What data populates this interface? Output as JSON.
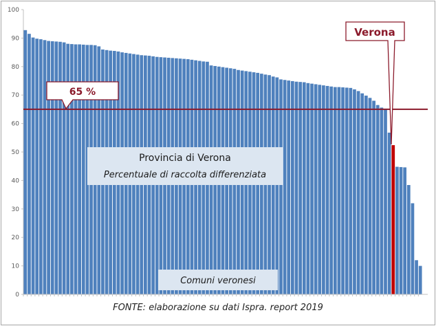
{
  "chart_data": {
    "type": "bar",
    "title": "Provincia di Verona",
    "subtitle": "Percentuale di raccolta differenziata",
    "xlabel": "Comuni veronesi",
    "ylabel": "",
    "ylim": [
      0,
      100
    ],
    "yticks": [
      0,
      10,
      20,
      30,
      40,
      50,
      60,
      70,
      80,
      90,
      100
    ],
    "grid": false,
    "bar_color": "#4f81bd",
    "highlight_color": "#c00000",
    "series": [
      {
        "values": [
          92.8,
          91.5,
          90.2,
          89.8,
          89.6,
          89.3,
          89.0,
          88.9,
          88.8,
          88.7,
          88.5,
          88.0,
          87.9,
          87.8,
          87.8,
          87.7,
          87.6,
          87.6,
          87.5,
          87.1,
          86.0,
          85.8,
          85.6,
          85.5,
          85.3,
          85.0,
          84.8,
          84.6,
          84.4,
          84.2,
          84.0,
          83.9,
          83.8,
          83.6,
          83.4,
          83.3,
          83.2,
          83.1,
          83.0,
          82.9,
          82.8,
          82.7,
          82.6,
          82.4,
          82.2,
          82.0,
          81.8,
          81.7,
          80.4,
          80.2,
          80.0,
          79.8,
          79.6,
          79.4,
          79.2,
          78.8,
          78.6,
          78.4,
          78.2,
          78.0,
          77.8,
          77.5,
          77.2,
          77.0,
          76.5,
          76.2,
          75.5,
          75.3,
          75.1,
          74.9,
          74.7,
          74.6,
          74.5,
          74.2,
          74.0,
          73.8,
          73.6,
          73.4,
          73.2,
          73.0,
          72.8,
          72.8,
          72.7,
          72.6,
          72.5,
          72.0,
          71.4,
          70.6,
          69.8,
          69.0,
          68.0,
          66.5,
          65.6,
          65.2,
          56.8,
          52.4,
          44.8,
          44.7,
          44.6,
          38.4,
          32.0,
          12.0,
          10.0
        ]
      }
    ],
    "highlight": {
      "label": "Verona",
      "index": 95,
      "value": 52.4
    },
    "threshold": {
      "label": "65 %",
      "value": 65
    }
  },
  "source_note": "FONTE: elaborazione su dati Ispra. report 2019"
}
